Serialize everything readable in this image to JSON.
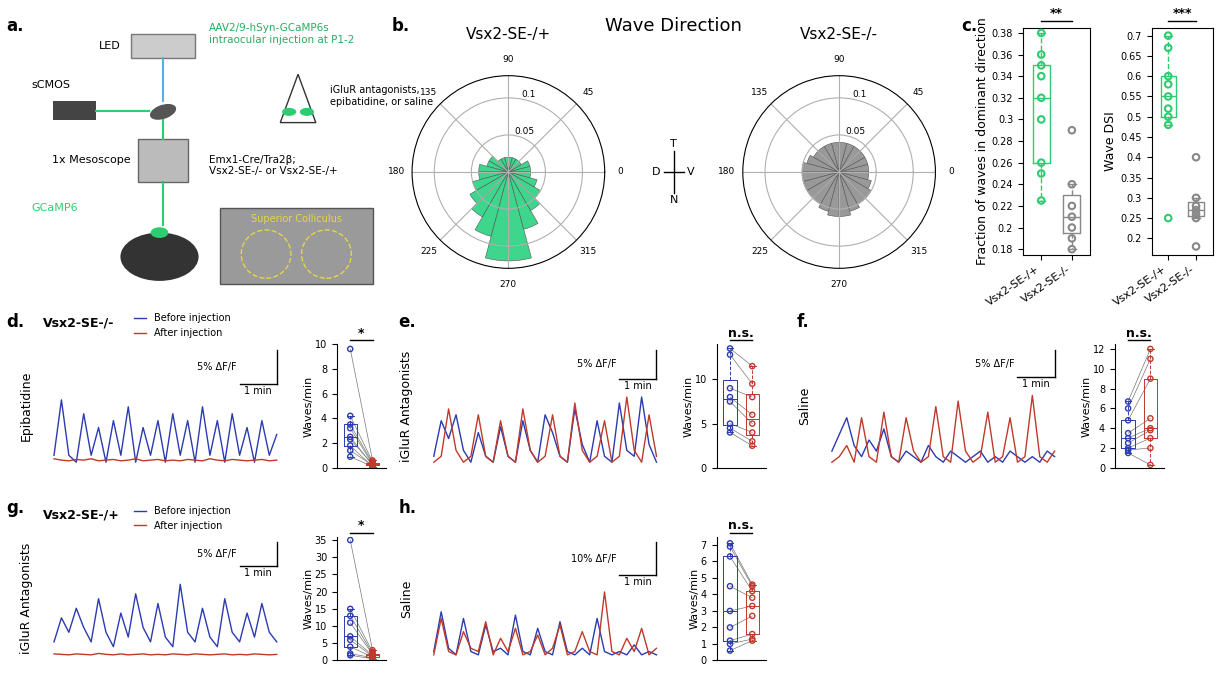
{
  "diagram": {
    "panel": "a.",
    "led": "LED",
    "camera": "sCMOS",
    "objective": "1x Mesoscope",
    "indicator": "GCaMP6",
    "injection": "AAV2/9-hSyn-GCaMP6s\nintraocular injection at P1-2",
    "drugs": "iGluR antagonists,\nepibatidine, or saline",
    "genotype": "Emx1-Cre/Tra2β;\nVsx2-SE-/- or Vsx2-SE-/+",
    "region": "Superior Colliculus"
  },
  "wave_direction": {
    "panel": "b.",
    "title": "Wave Direction",
    "compass": {
      "top": "T",
      "bottom": "N",
      "left": "D",
      "right": "V"
    }
  },
  "chart_data": [
    {
      "type": "polar_histogram",
      "title": "Vsx2-SE-/+",
      "color": "#3dd68c",
      "bins": [
        0,
        15,
        30,
        45,
        60,
        75,
        90,
        105,
        120,
        135,
        150,
        165,
        180,
        195,
        210,
        225,
        240,
        255,
        270,
        285,
        300,
        315,
        330,
        345,
        360
      ],
      "values": [
        0.03,
        0.03,
        0.02,
        0.02,
        0.02,
        0.02,
        0.02,
        0.02,
        0.02,
        0.03,
        0.03,
        0.04,
        0.04,
        0.05,
        0.06,
        0.07,
        0.09,
        0.12,
        0.12,
        0.08,
        0.06,
        0.05,
        0.04,
        0.03
      ],
      "ylim": [
        0,
        0.13
      ],
      "yticks": [
        0.05,
        0.1
      ],
      "xticks": [
        0,
        45,
        90,
        135,
        180,
        225,
        270,
        315
      ]
    },
    {
      "type": "polar_histogram",
      "title": "Vsx2-SE-/-",
      "color": "#999999",
      "bins": [
        0,
        15,
        30,
        45,
        60,
        75,
        90,
        105,
        120,
        135,
        150,
        165,
        180,
        195,
        210,
        225,
        240,
        255,
        270,
        285,
        300,
        315,
        330,
        345,
        360
      ],
      "values": [
        0.04,
        0.04,
        0.04,
        0.04,
        0.04,
        0.04,
        0.04,
        0.04,
        0.04,
        0.04,
        0.045,
        0.05,
        0.05,
        0.05,
        0.05,
        0.05,
        0.055,
        0.06,
        0.06,
        0.055,
        0.05,
        0.05,
        0.045,
        0.04
      ],
      "ylim": [
        0,
        0.13
      ],
      "yticks": [
        0.05,
        0.1
      ],
      "xticks": [
        0,
        45,
        90,
        135,
        180,
        225,
        270,
        315
      ]
    },
    {
      "type": "box",
      "panel": "c.",
      "ylabel": "Fraction of waves in dominant direction",
      "categories": [
        "Vsx2-SE-/+",
        "Vsx2-SE-/-"
      ],
      "colors": [
        "#2ecc71",
        "#888888"
      ],
      "values": [
        [
          0.38,
          0.36,
          0.35,
          0.34,
          0.32,
          0.3,
          0.26,
          0.25,
          0.225
        ],
        [
          0.29,
          0.24,
          0.22,
          0.21,
          0.2,
          0.19,
          0.18
        ]
      ],
      "significance": "**",
      "ylim": [
        0.175,
        0.385
      ],
      "yticks": [
        0.18,
        0.2,
        0.22,
        0.24,
        0.26,
        0.28,
        0.3,
        0.32,
        0.34,
        0.36,
        0.38
      ]
    },
    {
      "type": "box",
      "ylabel": "Wave DSI",
      "categories": [
        "Vsx2-SE-/+",
        "Vsx2-SE-/-"
      ],
      "colors": [
        "#2ecc71",
        "#888888"
      ],
      "values": [
        [
          0.7,
          0.67,
          0.6,
          0.58,
          0.55,
          0.52,
          0.5,
          0.48,
          0.25
        ],
        [
          0.4,
          0.3,
          0.28,
          0.27,
          0.26,
          0.25,
          0.18
        ]
      ],
      "significance": "***",
      "ylim": [
        0.16,
        0.72
      ],
      "yticks": [
        0.2,
        0.25,
        0.3,
        0.35,
        0.4,
        0.45,
        0.5,
        0.55,
        0.6,
        0.65,
        0.7
      ]
    },
    {
      "type": "trace_paired",
      "panel": "d.",
      "row_label": "Vsx2-SE-/-",
      "condition": "Epibatidine",
      "legend": "lower left",
      "x": [
        0,
        0.2,
        0.4,
        0.6,
        0.8,
        1,
        1.2,
        1.4,
        1.6,
        1.8,
        2,
        2.2,
        2.4,
        2.6,
        2.8,
        3,
        3.2,
        3.4,
        3.6,
        3.8,
        4,
        4.2,
        4.4,
        4.6,
        4.8,
        5,
        5.2,
        5.4,
        5.6,
        5.8,
        6
      ],
      "series": [
        {
          "name": "Before injection",
          "color": "#2b3bb0",
          "trace": [
            1,
            9,
            1,
            0,
            7,
            1,
            5,
            0,
            6,
            1,
            8,
            0,
            5,
            1,
            6,
            0,
            7,
            1,
            6,
            0,
            8,
            1,
            6,
            0,
            7,
            1,
            5,
            0,
            6,
            1,
            4
          ],
          "waves_per_min": [
            9.6,
            4.2,
            3.5,
            3.2,
            2.5,
            2.3,
            1.8,
            1.4,
            0.9
          ]
        },
        {
          "name": "After injection",
          "color": "#c0392b",
          "trace": [
            0.5,
            0.3,
            0.2,
            0.4,
            0.3,
            0.5,
            0.2,
            0.3,
            0.4,
            0.2,
            0.3,
            0.5,
            0.2,
            0.3,
            0.4,
            0.2,
            0.3,
            0.2,
            0.4,
            0.3,
            0.2,
            0.5,
            0.3,
            0.2,
            0.4,
            0.3,
            0.2,
            0.3,
            0.4,
            0.2,
            0.3
          ],
          "waves_per_min": [
            0.6,
            0.5,
            0.4,
            0.3,
            0.2,
            0.3,
            0.1,
            0.2,
            0.1
          ]
        }
      ],
      "scale_bar": {
        "y": 5,
        "y_label": "5% ΔF/F",
        "x": 1,
        "x_label": "1 min"
      },
      "ylabel": "Waves/min",
      "ylim": [
        0,
        10
      ],
      "yticks": [
        0,
        2,
        4,
        6,
        8,
        10
      ],
      "significance": "*"
    },
    {
      "type": "trace_paired",
      "panel": "e.",
      "condition": "iGluR Antagonists",
      "x": [
        0,
        0.2,
        0.4,
        0.6,
        0.8,
        1,
        1.2,
        1.4,
        1.6,
        1.8,
        2,
        2.2,
        2.4,
        2.6,
        2.8,
        3,
        3.2,
        3.4,
        3.6,
        3.8,
        4,
        4.2,
        4.4,
        4.6,
        4.8,
        5,
        5.2,
        5.4,
        5.6,
        5.8,
        6
      ],
      "series": [
        {
          "color": "#2b3bb0",
          "trace": [
            2,
            8,
            5,
            9,
            3,
            1,
            6,
            2,
            1,
            7,
            2,
            1,
            8,
            3,
            1,
            9,
            6,
            2,
            1,
            10,
            4,
            1,
            8,
            2,
            1,
            11,
            3,
            2,
            12,
            4,
            1
          ],
          "waves_per_min": [
            13.5,
            12.8,
            9,
            8,
            7.5,
            5,
            4.5,
            4
          ]
        },
        {
          "color": "#c0392b",
          "trace": [
            1,
            2,
            10,
            3,
            1,
            2,
            9,
            2,
            1,
            8,
            2,
            1,
            10,
            3,
            1,
            2,
            9,
            2,
            1,
            11,
            3,
            1,
            2,
            8,
            1,
            2,
            12,
            3,
            1,
            9,
            2
          ],
          "waves_per_min": [
            11.5,
            9.5,
            8,
            6,
            5,
            4,
            3,
            2.5
          ]
        }
      ],
      "scale_bar": {
        "y": 5,
        "y_label": "5% ΔF/F",
        "x": 1,
        "x_label": "1 min"
      },
      "ylabel": "Waves/min",
      "ylim": [
        0,
        14
      ],
      "yticks": [
        0,
        5,
        10
      ],
      "significance": "n.s."
    },
    {
      "type": "trace_paired",
      "panel": "f.",
      "condition": "Saline",
      "x": [
        0,
        0.2,
        0.4,
        0.6,
        0.8,
        1,
        1.2,
        1.4,
        1.6,
        1.8,
        2,
        2.2,
        2.4,
        2.6,
        2.8,
        3,
        3.2,
        3.4,
        3.6,
        3.8,
        4,
        4.2,
        4.4,
        4.6,
        4.8,
        5,
        5.2,
        5.4,
        5.6,
        5.8,
        6
      ],
      "series": [
        {
          "color": "#2b3bb0",
          "trace": [
            3,
            6,
            9,
            4,
            2,
            5,
            3,
            7,
            2,
            1,
            3,
            2,
            1,
            4,
            2,
            1,
            3,
            2,
            1,
            2,
            3,
            1,
            2,
            1,
            3,
            2,
            1,
            2,
            1,
            3,
            2
          ],
          "waves_per_min": [
            6.7,
            6,
            4.8,
            3.5,
            3,
            2.5,
            2,
            1.8,
            1.5
          ]
        },
        {
          "color": "#c0392b",
          "trace": [
            1,
            2,
            4,
            1,
            9,
            2,
            1,
            10,
            2,
            1,
            9,
            3,
            1,
            2,
            11,
            2,
            1,
            12,
            3,
            1,
            2,
            10,
            1,
            2,
            9,
            1,
            2,
            13,
            2,
            1,
            3
          ],
          "waves_per_min": [
            12,
            11,
            9,
            5,
            4,
            3.8,
            3,
            2,
            0.3
          ]
        }
      ],
      "scale_bar": {
        "y": 5,
        "y_label": "5% ΔF/F",
        "x": 1,
        "x_label": "1 min"
      },
      "ylabel": "Waves/min",
      "ylim": [
        0,
        12.5
      ],
      "yticks": [
        0,
        2,
        4,
        6,
        8,
        10,
        12
      ],
      "significance": "n.s."
    },
    {
      "type": "trace_paired",
      "panel": "g.",
      "row_label": "Vsx2-SE-/+",
      "condition": "iGluR Antagonists",
      "legend": "lower left",
      "x": [
        0,
        0.2,
        0.4,
        0.6,
        0.8,
        1,
        1.2,
        1.4,
        1.6,
        1.8,
        2,
        2.2,
        2.4,
        2.6,
        2.8,
        3,
        3.2,
        3.4,
        3.6,
        3.8,
        4,
        4.2,
        4.4,
        4.6,
        4.8,
        5,
        5.2,
        5.4,
        5.6,
        5.8,
        6
      ],
      "series": [
        {
          "name": "Before injection",
          "color": "#2b3bb0",
          "trace": [
            3,
            8,
            5,
            10,
            6,
            3,
            12,
            5,
            2,
            9,
            4,
            13,
            6,
            3,
            11,
            4,
            2,
            15,
            5,
            3,
            10,
            4,
            2,
            12,
            5,
            3,
            9,
            4,
            11,
            5,
            3
          ],
          "waves_per_min": [
            35,
            15,
            13,
            11,
            7,
            6,
            4,
            2,
            1.5
          ]
        },
        {
          "name": "After injection",
          "color": "#c0392b",
          "trace": [
            0.5,
            0.4,
            0.3,
            0.5,
            0.4,
            0.3,
            0.6,
            0.4,
            0.3,
            0.5,
            0.3,
            0.4,
            0.5,
            0.3,
            0.4,
            0.3,
            0.5,
            0.4,
            0.3,
            0.5,
            0.4,
            0.3,
            0.4,
            0.5,
            0.3,
            0.4,
            0.3,
            0.5,
            0.4,
            0.3,
            0.4
          ],
          "waves_per_min": [
            3,
            2.5,
            2,
            1.8,
            1.5,
            1.2,
            1,
            0.8,
            0.5
          ]
        }
      ],
      "scale_bar": {
        "y": 5,
        "y_label": "5% ΔF/F",
        "x": 1,
        "x_label": "1 min"
      },
      "ylabel": "Waves/min",
      "ylim": [
        0,
        36
      ],
      "yticks": [
        0,
        5,
        10,
        15,
        20,
        25,
        30,
        35
      ],
      "significance": "*"
    },
    {
      "type": "trace_paired",
      "panel": "h.",
      "condition": "Saline",
      "x": [
        0,
        0.2,
        0.4,
        0.6,
        0.8,
        1,
        1.2,
        1.4,
        1.6,
        1.8,
        2,
        2.2,
        2.4,
        2.6,
        2.8,
        3,
        3.2,
        3.4,
        3.6,
        3.8,
        4,
        4.2,
        4.4,
        4.6,
        4.8,
        5,
        5.2,
        5.4,
        5.6,
        5.8,
        6
      ],
      "series": [
        {
          "color": "#2b3bb0",
          "trace": [
            2,
            14,
            3,
            1,
            12,
            2,
            1,
            10,
            2,
            3,
            1,
            13,
            2,
            1,
            9,
            2,
            1,
            11,
            2,
            1,
            3,
            1,
            12,
            2,
            1,
            2,
            1,
            4,
            1,
            2,
            1
          ],
          "waves_per_min": [
            7.1,
            6.9,
            6.3,
            4.5,
            3,
            2,
            1.2,
            1.0,
            0.6
          ]
        },
        {
          "color": "#c0392b",
          "trace": [
            1,
            12,
            2,
            1,
            8,
            3,
            2,
            11,
            1,
            6,
            2,
            9,
            1,
            2,
            7,
            1,
            3,
            10,
            1,
            2,
            8,
            2,
            1,
            20,
            2,
            1,
            6,
            2,
            9,
            1,
            3
          ],
          "waves_per_min": [
            4.6,
            4.5,
            4.2,
            3.8,
            3.3,
            2.7,
            1.6,
            1.3,
            1.2
          ]
        }
      ],
      "scale_bar": {
        "y": 10,
        "y_label": "10% ΔF/F",
        "x": 1,
        "x_label": "1 min"
      },
      "ylabel": "Waves/min",
      "ylim": [
        0,
        7.5
      ],
      "yticks": [
        0,
        1,
        2,
        3,
        4,
        5,
        6,
        7
      ],
      "significance": "n.s."
    }
  ]
}
